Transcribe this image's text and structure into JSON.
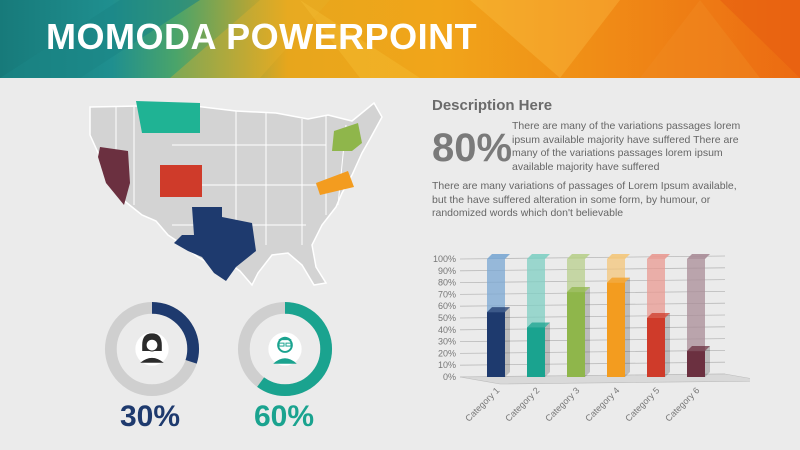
{
  "header": {
    "title": "MOMODA POWERPOINT"
  },
  "description": {
    "heading": "Description Here",
    "big_percent": "80%",
    "short_text": "There are many of the variations passages lorem ipsum available majority have suffered There are many of the variations passages lorem ipsum available majority have suffered",
    "long_text": "There are many variations of passages  of Lorem Ipsum available, but the have suffered alteration in some  form, by humour, or randomized words which  don't believable"
  },
  "donuts": [
    {
      "icon": "woman-icon",
      "percent_label": "30%",
      "value": 0.3,
      "color": "#1e3a6e",
      "track": "#cfcfcf"
    },
    {
      "icon": "man-glasses-icon",
      "percent_label": "60%",
      "value": 0.6,
      "color": "#1aa38f",
      "track": "#cfcfcf"
    }
  ],
  "map": {
    "highlighted_states": [
      {
        "name": "Montana",
        "color": "#1fb394"
      },
      {
        "name": "Nevada",
        "color": "#6b3040"
      },
      {
        "name": "Colorado",
        "color": "#cf3b2a"
      },
      {
        "name": "Texas",
        "color": "#1e3a6e"
      },
      {
        "name": "New York",
        "color": "#8fb64b"
      },
      {
        "name": "Virginia",
        "color": "#f39c1f"
      }
    ]
  },
  "chart_data": {
    "type": "bar",
    "categories": [
      "Category 1",
      "Category 2",
      "Category 3",
      "Category 4",
      "Category 5",
      "Category 6"
    ],
    "values": [
      55,
      42,
      72,
      80,
      50,
      22
    ],
    "ylim": [
      0,
      100
    ],
    "yticks": [
      "0%",
      "10%",
      "20%",
      "30%",
      "40%",
      "50%",
      "60%",
      "70%",
      "80%",
      "90%",
      "100%"
    ],
    "colors": [
      "#1e3a6e",
      "#1aa38f",
      "#8fb64b",
      "#f39c1f",
      "#cf3b2a",
      "#6b3040"
    ],
    "light_colors": [
      "#7aa7d3",
      "#7fcfc3",
      "#b8cf8c",
      "#f4c67a",
      "#e99a92",
      "#a98c97"
    ],
    "grid": true
  }
}
